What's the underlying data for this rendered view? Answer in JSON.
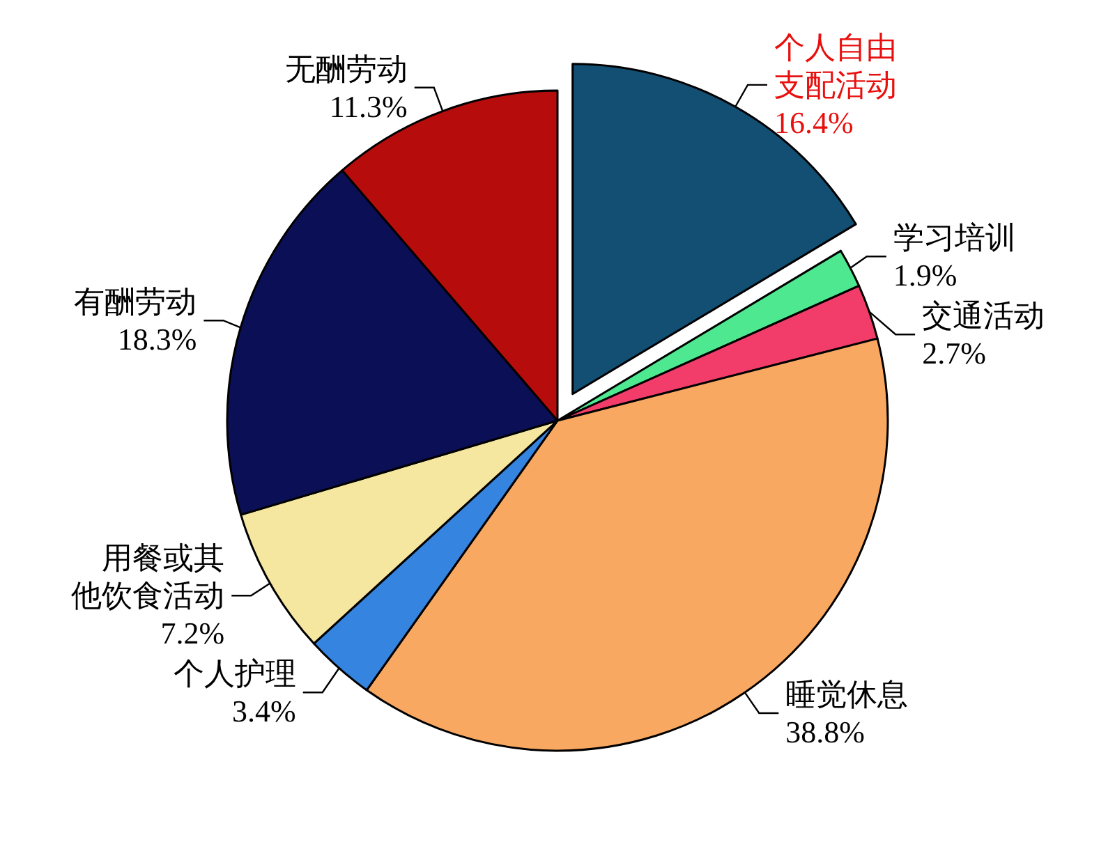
{
  "chart_data": {
    "type": "pie",
    "categories": [
      "个人自由支配活动",
      "学习培训",
      "交通活动",
      "睡觉休息",
      "个人护理",
      "用餐或其他饮食活动",
      "有酬劳动",
      "无酬劳动"
    ],
    "values": [
      16.4,
      1.9,
      2.7,
      38.8,
      3.4,
      7.2,
      18.3,
      11.3
    ],
    "colors": [
      "#124f73",
      "#4de88f",
      "#f23d6a",
      "#f9a862",
      "#3584e0",
      "#f5e6a0",
      "#0b0f55",
      "#b70c0c"
    ],
    "value_labels": [
      "16.4%",
      "1.9%",
      "2.7%",
      "38.8%",
      "3.4%",
      "7.2%",
      "18.3%",
      "11.3%"
    ],
    "legend": false
  }
}
